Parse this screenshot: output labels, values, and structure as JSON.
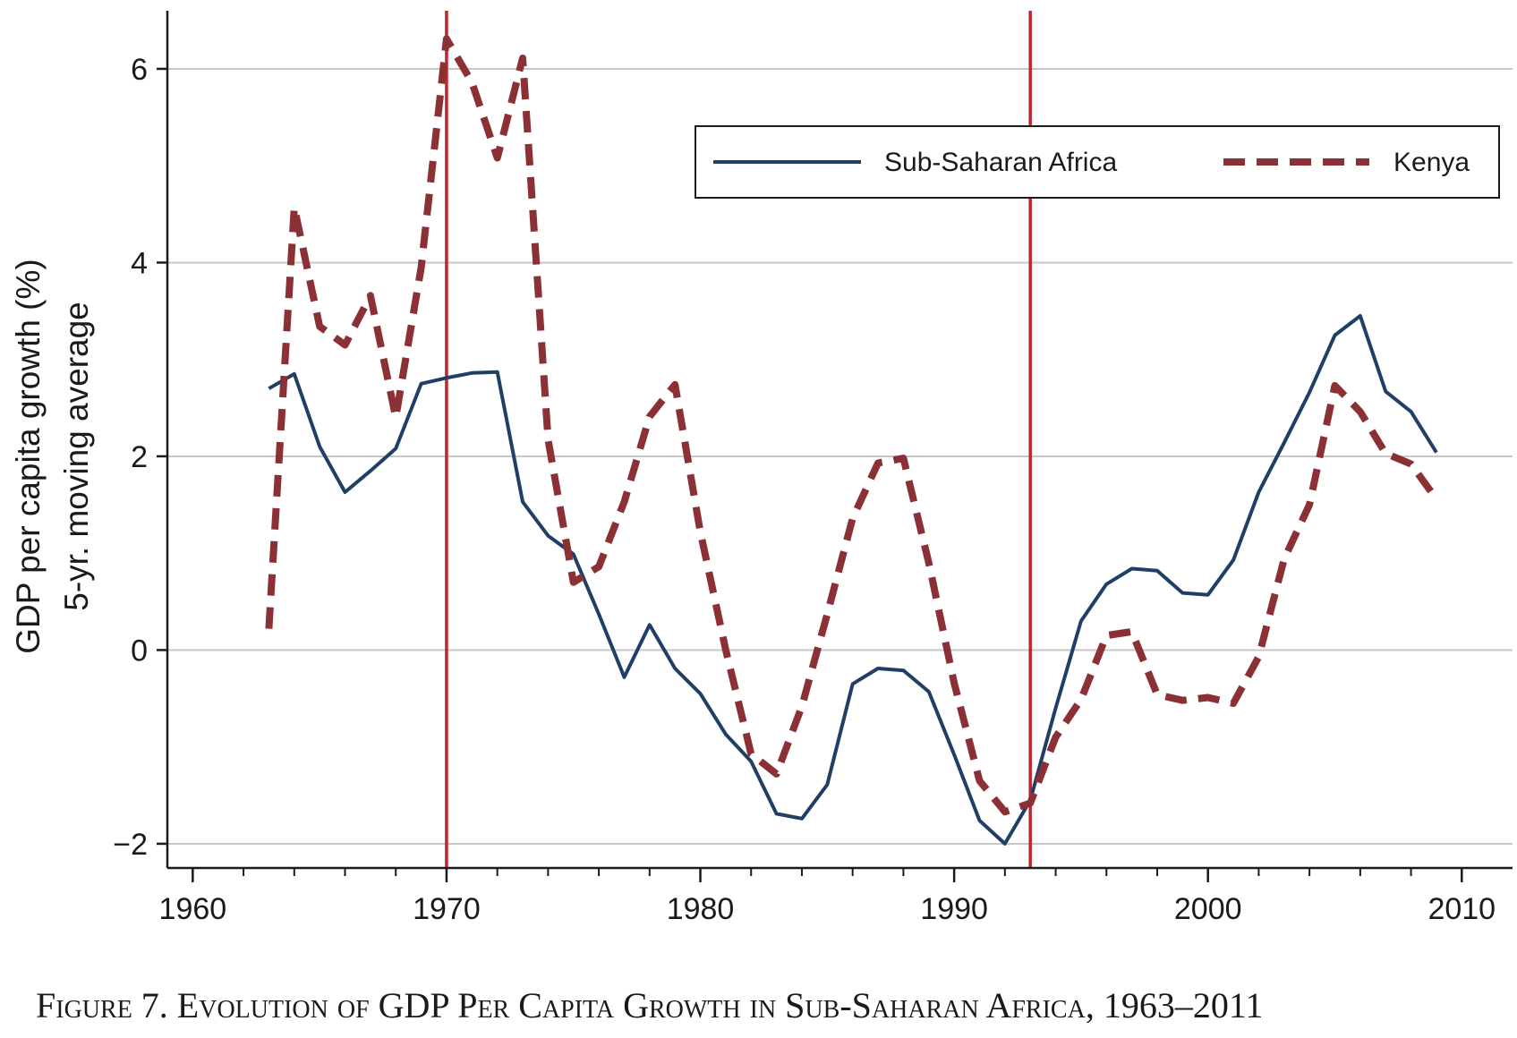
{
  "chart_data": {
    "type": "line",
    "xlabel": "",
    "ylabel_line1": "GDP per capita growth (%)",
    "ylabel_line2": "5-yr. moving average",
    "xlim": [
      1959,
      2012
    ],
    "ylim": [
      -2.25,
      6.6
    ],
    "xticks": [
      1960,
      1970,
      1980,
      1990,
      2000,
      2010
    ],
    "yticks": [
      -2,
      0,
      2,
      4,
      6
    ],
    "ytick_labels": [
      "−2",
      "0",
      "2",
      "4",
      "6"
    ],
    "grid": true,
    "legend_position": "top-right",
    "vertical_lines": [
      1970,
      1993
    ],
    "colors": {
      "ssa": "#1f3f66",
      "kenya": "#8b3136",
      "vline": "#c4252b",
      "grid": "#c8c8c8"
    },
    "x": [
      1963,
      1964,
      1965,
      1966,
      1967,
      1968,
      1969,
      1970,
      1971,
      1972,
      1973,
      1974,
      1975,
      1976,
      1977,
      1978,
      1979,
      1980,
      1981,
      1982,
      1983,
      1984,
      1985,
      1986,
      1987,
      1988,
      1989,
      1990,
      1991,
      1992,
      1993,
      1994,
      1995,
      1996,
      1997,
      1998,
      1999,
      2000,
      2001,
      2002,
      2003,
      2004,
      2005,
      2006,
      2007,
      2008,
      2009
    ],
    "series": [
      {
        "name": "Sub-Saharan Africa",
        "style": "solid",
        "values": [
          2.7,
          2.85,
          2.1,
          1.63,
          1.85,
          2.08,
          2.75,
          2.81,
          2.86,
          2.87,
          1.53,
          1.18,
          0.99,
          0.37,
          -0.28,
          0.26,
          -0.19,
          -0.45,
          -0.87,
          -1.15,
          -1.69,
          -1.74,
          -1.39,
          -0.35,
          -0.19,
          -0.21,
          -0.43,
          -1.08,
          -1.76,
          -2.0,
          -1.55,
          -0.6,
          0.3,
          0.68,
          0.84,
          0.82,
          0.59,
          0.57,
          0.93,
          1.63,
          2.14,
          2.66,
          3.25,
          3.45,
          2.67,
          2.46,
          2.04
        ]
      },
      {
        "name": "Kenya",
        "style": "dashed",
        "values": [
          0.22,
          4.57,
          3.34,
          3.15,
          3.66,
          2.4,
          3.95,
          6.31,
          5.86,
          5.08,
          6.11,
          2.17,
          0.7,
          0.86,
          1.53,
          2.41,
          2.74,
          1.22,
          0.0,
          -1.07,
          -1.28,
          -0.58,
          0.37,
          1.36,
          1.93,
          1.98,
          0.9,
          -0.34,
          -1.35,
          -1.67,
          -1.58,
          -0.9,
          -0.51,
          0.15,
          0.19,
          -0.46,
          -0.52,
          -0.49,
          -0.55,
          -0.07,
          0.94,
          1.5,
          2.73,
          2.46,
          2.03,
          1.92,
          1.56
        ]
      }
    ]
  },
  "caption": {
    "figure": "Figure 7.",
    "title": "Evolution of GDP Per Capita Growth in Sub-Saharan Africa,",
    "years": "1963–2011"
  }
}
